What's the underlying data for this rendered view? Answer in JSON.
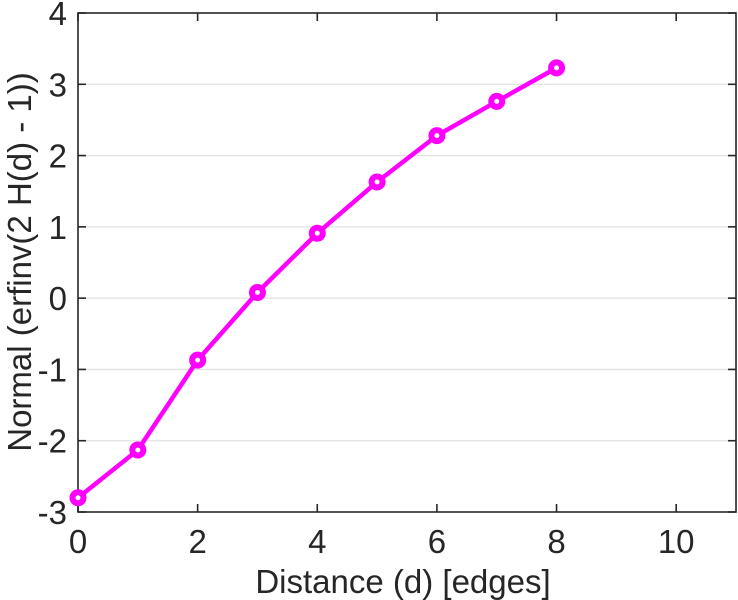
{
  "figure": {
    "background_color": "#ffffff"
  },
  "chart_data": {
    "type": "line",
    "title": "",
    "xlabel": "Distance (d) [edges]",
    "ylabel": "Normal (erfinv(2 H(d) - 1))",
    "x": [
      0,
      1,
      2,
      3,
      4,
      5,
      6,
      7,
      8
    ],
    "y": [
      -2.8,
      -2.13,
      -0.87,
      0.08,
      0.91,
      1.63,
      2.28,
      2.76,
      3.23
    ],
    "xlim": [
      0,
      11
    ],
    "ylim": [
      -3,
      4
    ],
    "x_ticks": [
      0,
      2,
      4,
      6,
      8,
      10
    ],
    "y_ticks": [
      -3,
      -2,
      -1,
      0,
      1,
      2,
      3,
      4
    ],
    "grid": "horizontal-only",
    "legend_position": "none",
    "line_color": "#ff00ff",
    "marker": "o",
    "marker_fill": "#ffffff",
    "axis_color": "#262626",
    "grid_color": "#e2e2e2"
  }
}
